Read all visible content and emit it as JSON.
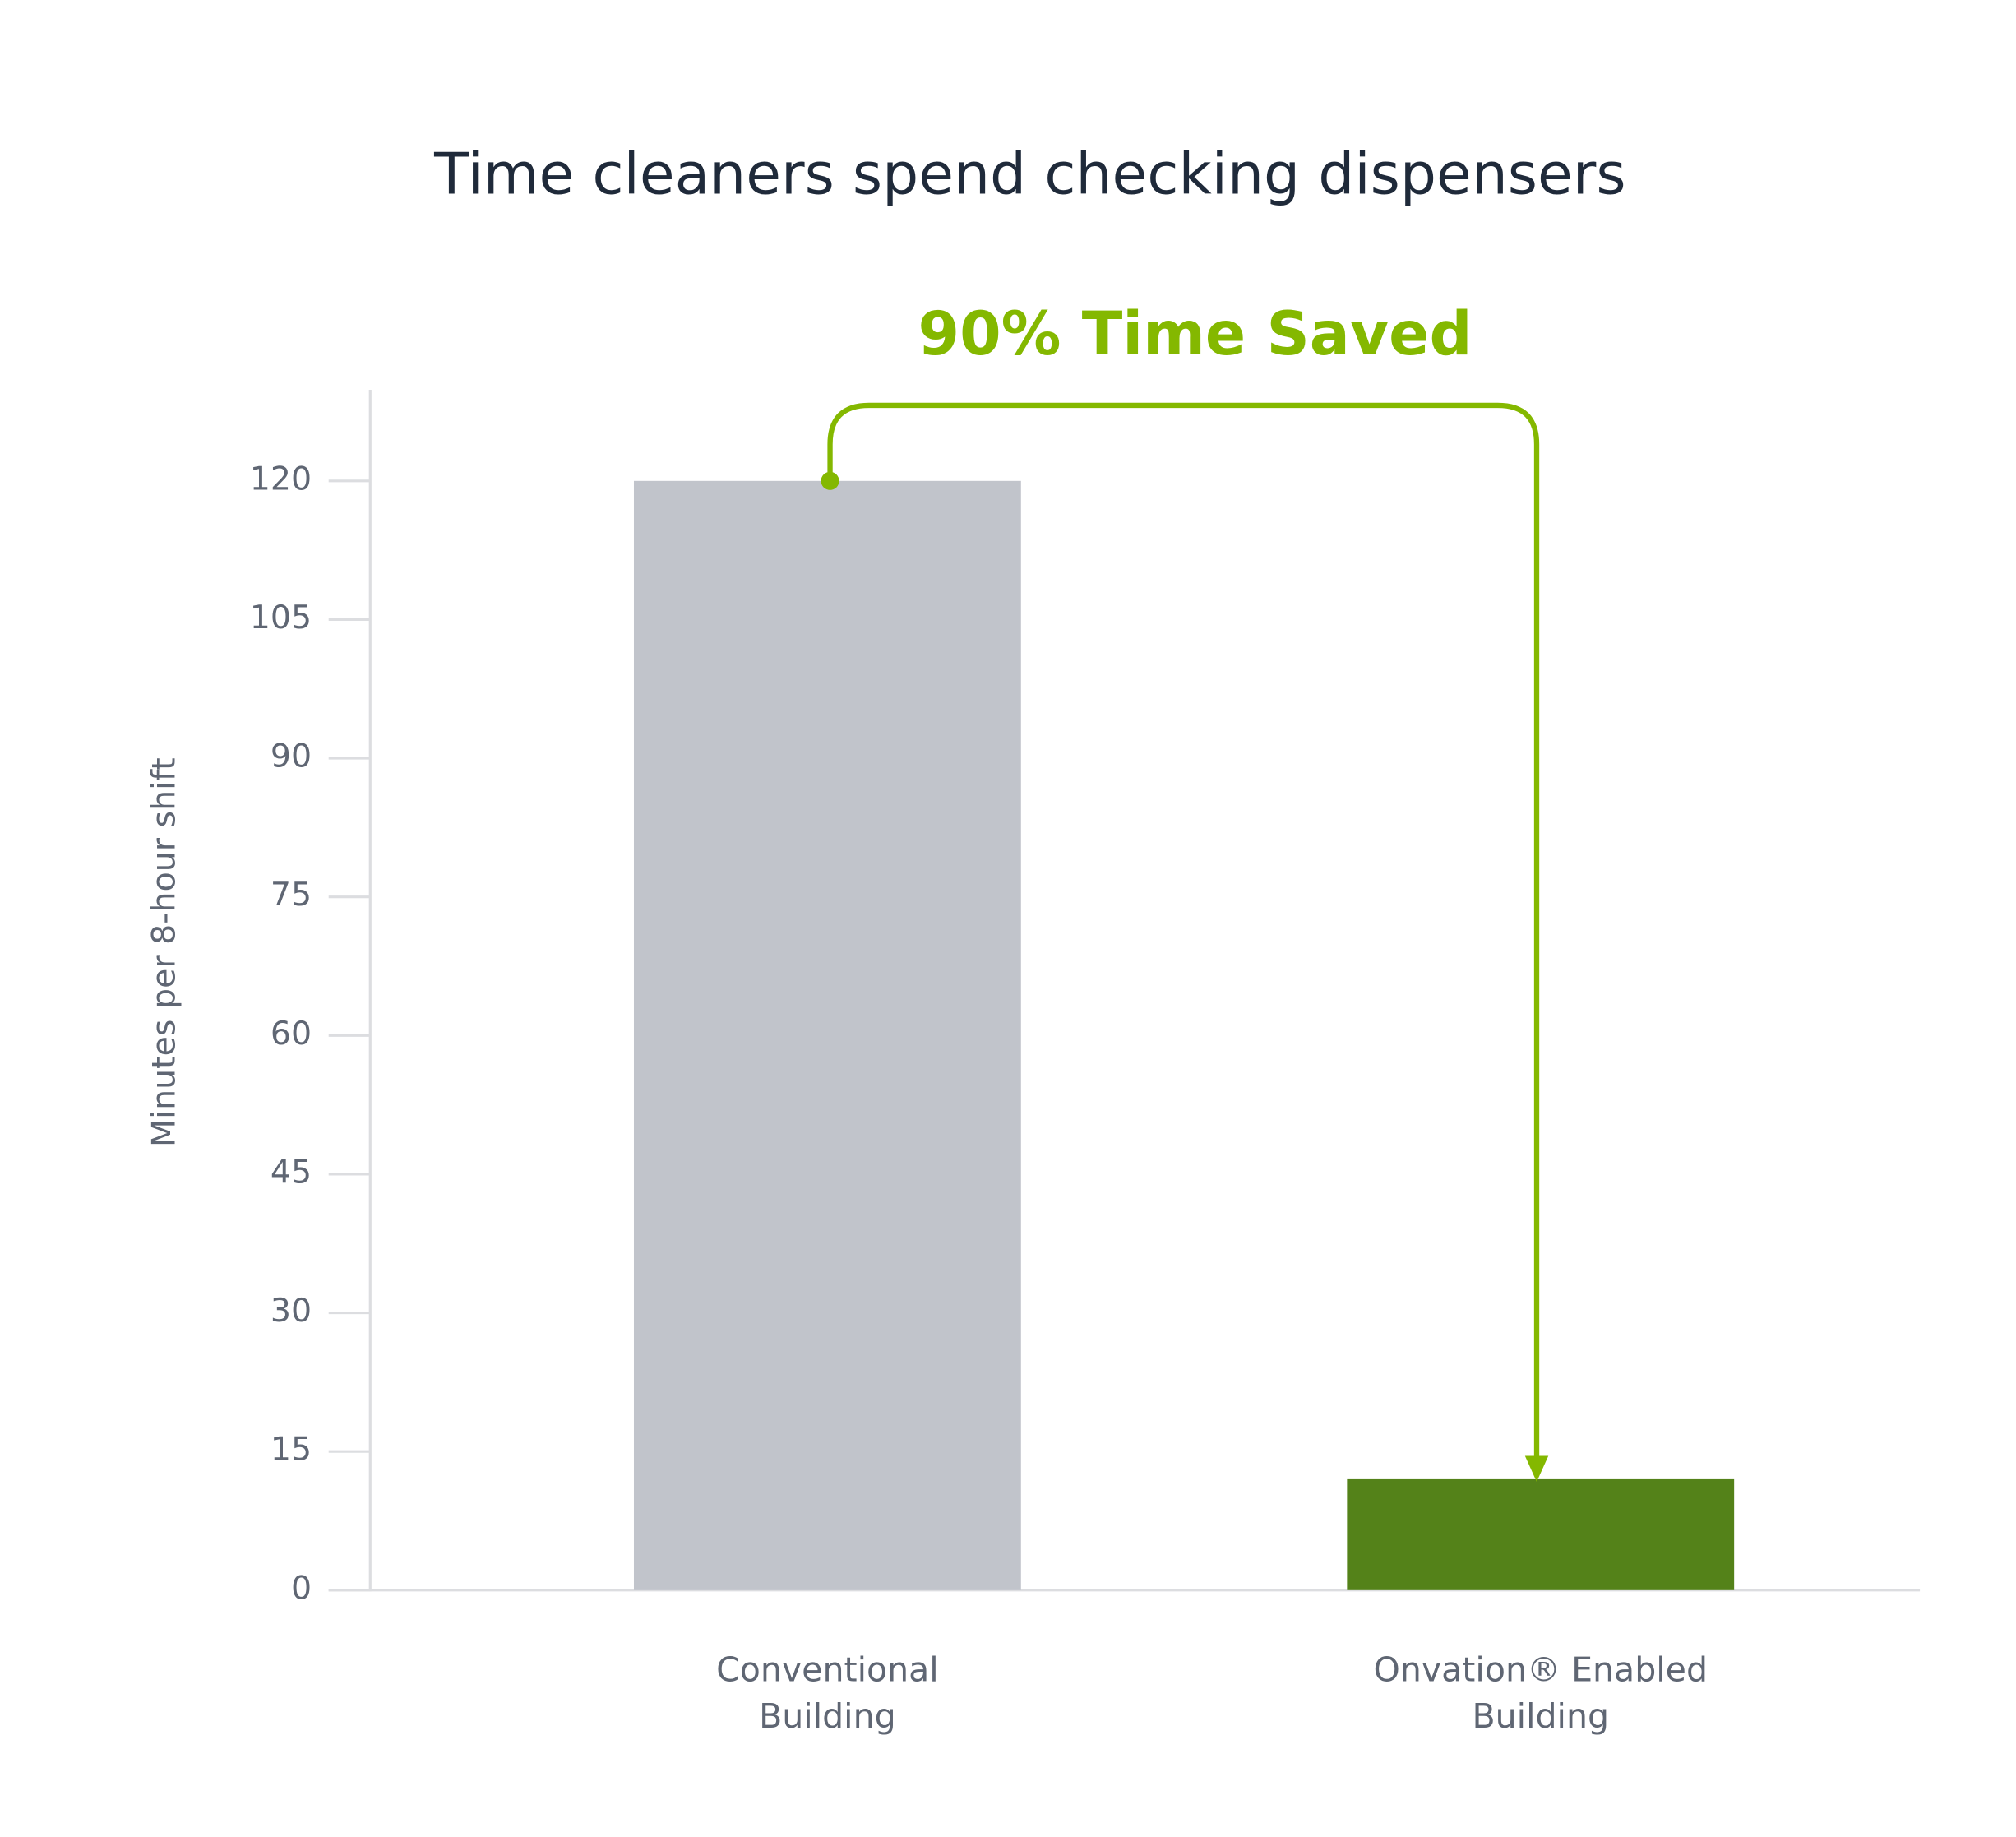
{
  "chart_data": {
    "type": "bar",
    "title": "Time cleaners spend checking dispensers",
    "annotation": "90% Time Saved",
    "y_label": "Minutes per 8-hour shift",
    "categories": [
      [
        "Conventional",
        "Building"
      ],
      [
        "Onvation® Enabled",
        "Building"
      ]
    ],
    "values": [
      120,
      12
    ],
    "colors": [
      "#c1c4cb",
      "#548219"
    ],
    "annotation_color": "#84b800",
    "ylim": [
      0,
      130
    ],
    "yticks": [
      0,
      15,
      30,
      45,
      60,
      75,
      90,
      105,
      120
    ],
    "grid": false
  }
}
